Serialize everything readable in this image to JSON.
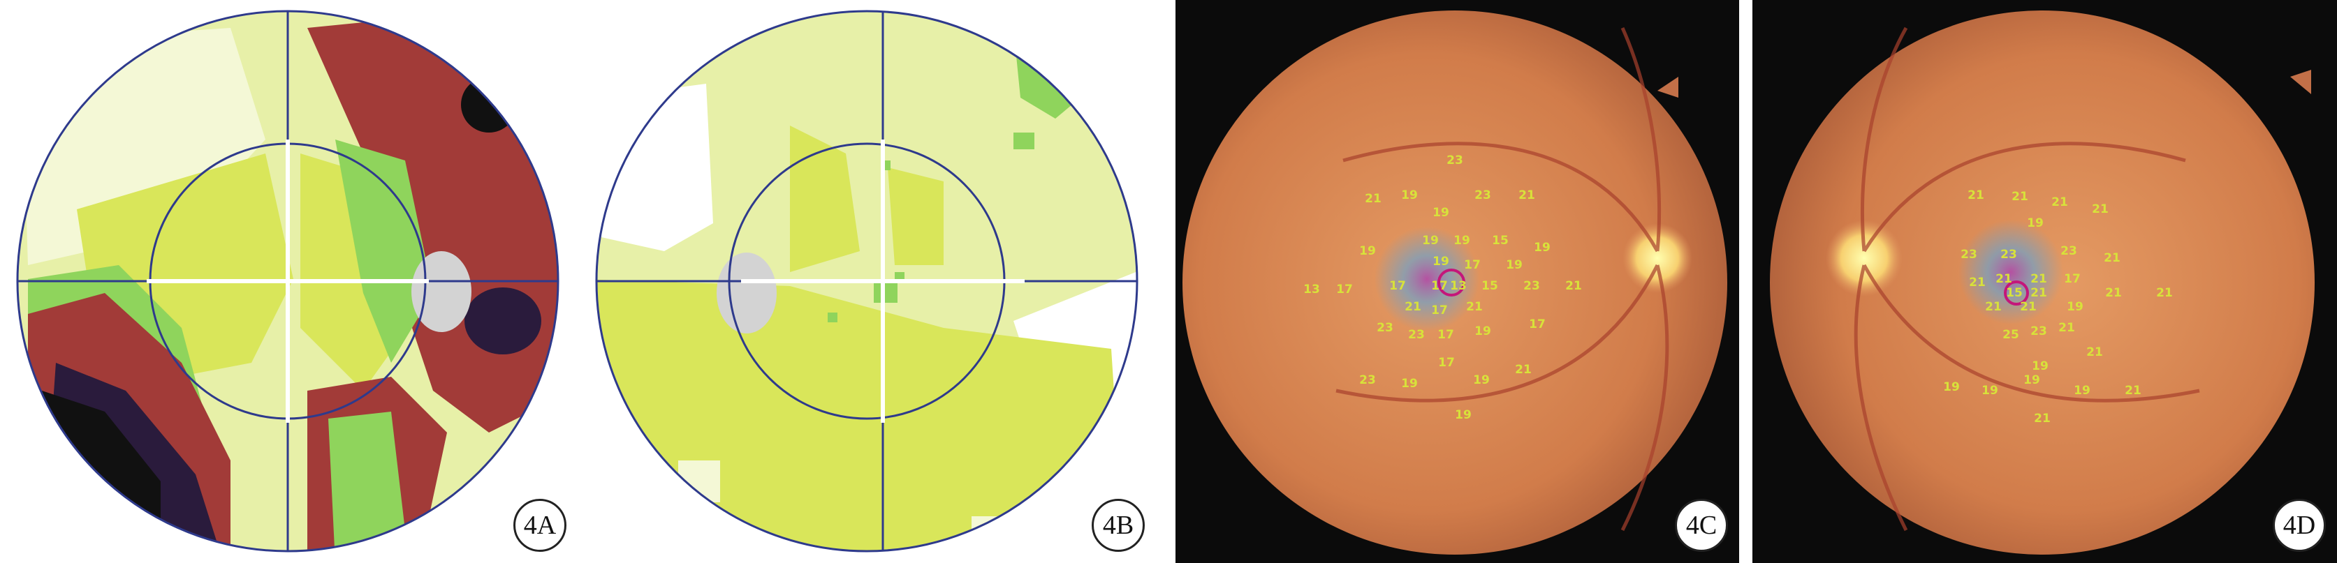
{
  "panels": [
    {
      "id": "4A",
      "label": "4A",
      "kind": "visual-field-map"
    },
    {
      "id": "4B",
      "label": "4B",
      "kind": "visual-field-map"
    },
    {
      "id": "4C",
      "label": "4C",
      "kind": "fundus-microperimetry"
    },
    {
      "id": "4D",
      "label": "4D",
      "kind": "fundus-microperimetry"
    }
  ],
  "colors": {
    "background": "#ffffff",
    "grid_line": "#2e3a8c",
    "blind_spot": "#d3d3d3",
    "very_light": "#f4f8d6",
    "light": "#e7f0a8",
    "yellow": "#d9e65a",
    "green": "#8fd45c",
    "red_brown": "#a23b38",
    "dark_purple": "#2a1b3c",
    "black": "#111111",
    "fundus": "#d88a5a",
    "sensitivity_text": "#d8e23a",
    "fixation": "#c4167a"
  },
  "fundus_4C_values": [
    "23",
    "21",
    "19",
    "19",
    "23",
    "21",
    "19",
    "19",
    "19",
    "15",
    "19",
    "19",
    "17",
    "13",
    "17",
    "17",
    "17",
    "13",
    "15",
    "23",
    "19",
    "21",
    "17",
    "21",
    "23",
    "23",
    "17",
    "19",
    "17",
    "23",
    "19",
    "17",
    "19",
    "21",
    "19",
    "21"
  ],
  "fundus_4D_values": [
    "21",
    "21",
    "21",
    "21",
    "23",
    "23",
    "19",
    "23",
    "21",
    "15",
    "21",
    "21",
    "21",
    "21",
    "17",
    "21",
    "21",
    "21",
    "25",
    "23",
    "19",
    "19",
    "21",
    "21",
    "21",
    "19",
    "19",
    "19",
    "19",
    "21",
    "21"
  ]
}
